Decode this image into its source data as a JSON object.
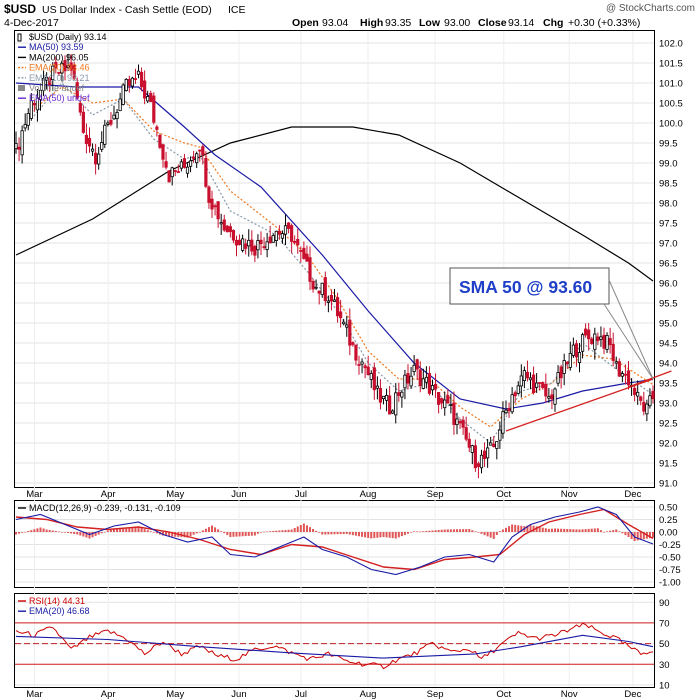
{
  "header": {
    "symbol": "$USD",
    "name": "US Dollar Index - Cash Settle (EOD)",
    "exchange": "ICE",
    "date": "4-Dec-2017",
    "watermark": "@ StockCharts.com",
    "ohlc": {
      "open_label": "Open",
      "open": "93.04",
      "high_label": "High",
      "high": "93.35",
      "low_label": "Low",
      "low": "93.00",
      "close_label": "Close",
      "close": "93.14",
      "chg_label": "Chg",
      "chg": "+0.30 (+0.33%)"
    }
  },
  "chart_data": [
    {
      "type": "candlestick",
      "title": "$USD (Daily) 93.14",
      "legend": [
        {
          "label": "$USD (Daily) 93.14",
          "color": "#000000",
          "style": "candle"
        },
        {
          "label": "MA(50) 93.59",
          "color": "#1a1aa6",
          "style": "line"
        },
        {
          "label": "MA(200) 96.05",
          "color": "#000000",
          "style": "line"
        },
        {
          "label": "EMA(20) 93.46",
          "color": "#f07820",
          "style": "dotted"
        },
        {
          "label": "EMA(10) 93.21",
          "color": "#8899aa",
          "style": "dotted"
        },
        {
          "label": "Volume undef",
          "color": "#888888",
          "style": "bars"
        },
        {
          "label": "EMA(50) undef",
          "color": "#6a2ad0",
          "style": "line"
        }
      ],
      "ylim": [
        90.9,
        102.3
      ],
      "y_ticks": [
        "102.0",
        "101.5",
        "101.0",
        "100.5",
        "100.0",
        "99.5",
        "99.0",
        "98.5",
        "98.0",
        "97.5",
        "97.0",
        "96.5",
        "96.0",
        "95.5",
        "95.0",
        "94.5",
        "94.0",
        "93.5",
        "93.0",
        "92.5",
        "92.0",
        "91.5",
        "91.0"
      ],
      "x_months": [
        "Mar",
        "Apr",
        "May",
        "Jun",
        "Jul",
        "Aug",
        "Sep",
        "Oct",
        "Nov",
        "Dec"
      ],
      "price_path": [
        [
          0,
          99.3
        ],
        [
          5,
          100.5
        ],
        [
          12,
          101.2
        ],
        [
          18,
          101.4
        ],
        [
          22,
          99.8
        ],
        [
          26,
          99.2
        ],
        [
          30,
          99.9
        ],
        [
          36,
          100.9
        ],
        [
          40,
          101.1
        ],
        [
          44,
          100.4
        ],
        [
          50,
          98.7
        ],
        [
          55,
          98.9
        ],
        [
          60,
          99.5
        ],
        [
          63,
          98.2
        ],
        [
          68,
          97.4
        ],
        [
          73,
          97.1
        ],
        [
          78,
          96.9
        ],
        [
          85,
          97.3
        ],
        [
          90,
          97.2
        ],
        [
          94,
          96.5
        ],
        [
          98,
          95.9
        ],
        [
          102,
          95.7
        ],
        [
          106,
          95.1
        ],
        [
          110,
          94.4
        ],
        [
          114,
          93.9
        ],
        [
          118,
          93.2
        ],
        [
          122,
          92.9
        ],
        [
          126,
          93.4
        ],
        [
          130,
          93.8
        ],
        [
          134,
          93.5
        ],
        [
          138,
          93.1
        ],
        [
          142,
          92.8
        ],
        [
          146,
          92.2
        ],
        [
          150,
          91.6
        ],
        [
          153,
          91.6
        ],
        [
          156,
          91.9
        ],
        [
          158,
          92.4
        ],
        [
          162,
          93.2
        ],
        [
          166,
          93.7
        ],
        [
          170,
          93.4
        ],
        [
          174,
          93.1
        ],
        [
          178,
          93.7
        ],
        [
          182,
          94.3
        ],
        [
          186,
          94.6
        ],
        [
          190,
          94.7
        ],
        [
          194,
          94.4
        ],
        [
          196,
          93.9
        ],
        [
          200,
          93.6
        ],
        [
          203,
          93.1
        ],
        [
          206,
          92.8
        ],
        [
          208,
          93.14
        ]
      ],
      "ma50": [
        [
          0,
          101.0
        ],
        [
          20,
          100.9
        ],
        [
          40,
          100.9
        ],
        [
          55,
          99.9
        ],
        [
          65,
          99.2
        ],
        [
          80,
          98.4
        ],
        [
          100,
          96.7
        ],
        [
          115,
          95.3
        ],
        [
          130,
          94.0
        ],
        [
          145,
          93.1
        ],
        [
          160,
          92.85
        ],
        [
          172,
          93.0
        ],
        [
          185,
          93.3
        ],
        [
          200,
          93.5
        ],
        [
          208,
          93.59
        ]
      ],
      "ma200": [
        [
          0,
          96.7
        ],
        [
          25,
          97.6
        ],
        [
          50,
          98.8
        ],
        [
          70,
          99.5
        ],
        [
          90,
          99.9
        ],
        [
          110,
          99.9
        ],
        [
          125,
          99.7
        ],
        [
          145,
          99.0
        ],
        [
          165,
          98.1
        ],
        [
          185,
          97.2
        ],
        [
          200,
          96.5
        ],
        [
          208,
          96.05
        ]
      ],
      "ema20": [
        [
          5,
          100.3
        ],
        [
          15,
          100.9
        ],
        [
          25,
          100.5
        ],
        [
          35,
          100.6
        ],
        [
          45,
          99.8
        ],
        [
          55,
          99.5
        ],
        [
          60,
          99.4
        ],
        [
          70,
          98.3
        ],
        [
          85,
          97.4
        ],
        [
          95,
          96.7
        ],
        [
          105,
          95.6
        ],
        [
          115,
          94.3
        ],
        [
          125,
          93.6
        ],
        [
          135,
          93.6
        ],
        [
          145,
          92.9
        ],
        [
          155,
          92.4
        ],
        [
          165,
          93.1
        ],
        [
          175,
          93.5
        ],
        [
          185,
          94.2
        ],
        [
          195,
          94.1
        ],
        [
          208,
          93.46
        ]
      ],
      "ema10": [
        [
          5,
          100.1
        ],
        [
          15,
          101.0
        ],
        [
          25,
          100.2
        ],
        [
          35,
          100.6
        ],
        [
          45,
          99.6
        ],
        [
          55,
          99.1
        ],
        [
          60,
          99.2
        ],
        [
          70,
          97.8
        ],
        [
          85,
          97.2
        ],
        [
          95,
          96.3
        ],
        [
          105,
          95.3
        ],
        [
          115,
          94.0
        ],
        [
          125,
          93.3
        ],
        [
          135,
          93.5
        ],
        [
          145,
          92.6
        ],
        [
          155,
          92.0
        ],
        [
          165,
          93.3
        ],
        [
          175,
          93.5
        ],
        [
          185,
          94.5
        ],
        [
          195,
          93.9
        ],
        [
          208,
          93.21
        ]
      ],
      "trendline": [
        [
          160,
          92.3
        ],
        [
          208,
          93.6
        ]
      ],
      "trend_extension": [
        [
          200,
          93.4
        ],
        [
          214,
          93.8
        ]
      ],
      "annotation": {
        "text": "SMA 50 @ 93.60",
        "points_to": [
          208,
          93.6
        ]
      }
    },
    {
      "type": "line",
      "title": "MACD(12,26,9) -0.239, -0.131, -0.109",
      "legend": [
        {
          "label": "MACD(12,26,9) -0.239, -0.131, -0.109",
          "color": "#000000"
        }
      ],
      "ylim": [
        -1.1,
        0.62
      ],
      "y_ticks": [
        "0.50",
        "0.25",
        "0.00",
        "-0.25",
        "-0.50",
        "-0.75",
        "-1.00"
      ],
      "macd": [
        [
          0,
          0.25
        ],
        [
          8,
          0.35
        ],
        [
          16,
          0.15
        ],
        [
          24,
          -0.05
        ],
        [
          32,
          0.12
        ],
        [
          40,
          0.2
        ],
        [
          48,
          -0.05
        ],
        [
          56,
          -0.2
        ],
        [
          64,
          -0.1
        ],
        [
          70,
          -0.45
        ],
        [
          78,
          -0.5
        ],
        [
          86,
          -0.3
        ],
        [
          94,
          -0.1
        ],
        [
          100,
          -0.35
        ],
        [
          108,
          -0.5
        ],
        [
          116,
          -0.75
        ],
        [
          124,
          -0.85
        ],
        [
          132,
          -0.7
        ],
        [
          140,
          -0.5
        ],
        [
          148,
          -0.45
        ],
        [
          156,
          -0.6
        ],
        [
          162,
          -0.1
        ],
        [
          168,
          0.15
        ],
        [
          176,
          0.3
        ],
        [
          184,
          0.4
        ],
        [
          190,
          0.5
        ],
        [
          196,
          0.35
        ],
        [
          202,
          -0.1
        ],
        [
          208,
          -0.24
        ]
      ],
      "signal": [
        [
          0,
          0.3
        ],
        [
          10,
          0.25
        ],
        [
          20,
          0.1
        ],
        [
          30,
          0.05
        ],
        [
          40,
          0.1
        ],
        [
          50,
          0.0
        ],
        [
          60,
          -0.15
        ],
        [
          70,
          -0.35
        ],
        [
          80,
          -0.45
        ],
        [
          90,
          -0.25
        ],
        [
          100,
          -0.3
        ],
        [
          110,
          -0.5
        ],
        [
          120,
          -0.7
        ],
        [
          130,
          -0.75
        ],
        [
          140,
          -0.55
        ],
        [
          150,
          -0.5
        ],
        [
          158,
          -0.45
        ],
        [
          166,
          -0.05
        ],
        [
          174,
          0.2
        ],
        [
          184,
          0.35
        ],
        [
          192,
          0.45
        ],
        [
          200,
          0.15
        ],
        [
          208,
          -0.13
        ]
      ]
    },
    {
      "type": "line",
      "title": "RSI(14) 44.31",
      "legend": [
        {
          "label": "RSI(14) 44.31",
          "color": "#cc0000"
        },
        {
          "label": "EMA(20) 46.68",
          "color": "#1a1aa6"
        }
      ],
      "ylim": [
        8,
        98
      ],
      "y_ticks": [
        "90",
        "70",
        "50",
        "30",
        "10"
      ],
      "rsi": [
        [
          0,
          62
        ],
        [
          6,
          58
        ],
        [
          12,
          66
        ],
        [
          18,
          44
        ],
        [
          24,
          56
        ],
        [
          30,
          62
        ],
        [
          36,
          55
        ],
        [
          42,
          40
        ],
        [
          48,
          52
        ],
        [
          54,
          40
        ],
        [
          60,
          47
        ],
        [
          66,
          38
        ],
        [
          72,
          35
        ],
        [
          78,
          44
        ],
        [
          84,
          48
        ],
        [
          90,
          41
        ],
        [
          96,
          35
        ],
        [
          102,
          40
        ],
        [
          108,
          33
        ],
        [
          114,
          30
        ],
        [
          120,
          28
        ],
        [
          124,
          34
        ],
        [
          130,
          40
        ],
        [
          136,
          50
        ],
        [
          142,
          42
        ],
        [
          148,
          45
        ],
        [
          152,
          35
        ],
        [
          158,
          48
        ],
        [
          164,
          60
        ],
        [
          170,
          55
        ],
        [
          176,
          58
        ],
        [
          182,
          65
        ],
        [
          186,
          68
        ],
        [
          190,
          62
        ],
        [
          196,
          55
        ],
        [
          200,
          47
        ],
        [
          204,
          40
        ],
        [
          208,
          44
        ]
      ],
      "ema20": [
        [
          0,
          57
        ],
        [
          30,
          54
        ],
        [
          60,
          47
        ],
        [
          90,
          41
        ],
        [
          120,
          36
        ],
        [
          150,
          40
        ],
        [
          165,
          47
        ],
        [
          185,
          58
        ],
        [
          200,
          52
        ],
        [
          208,
          47
        ]
      ],
      "levels": [
        70,
        50,
        30
      ]
    }
  ]
}
